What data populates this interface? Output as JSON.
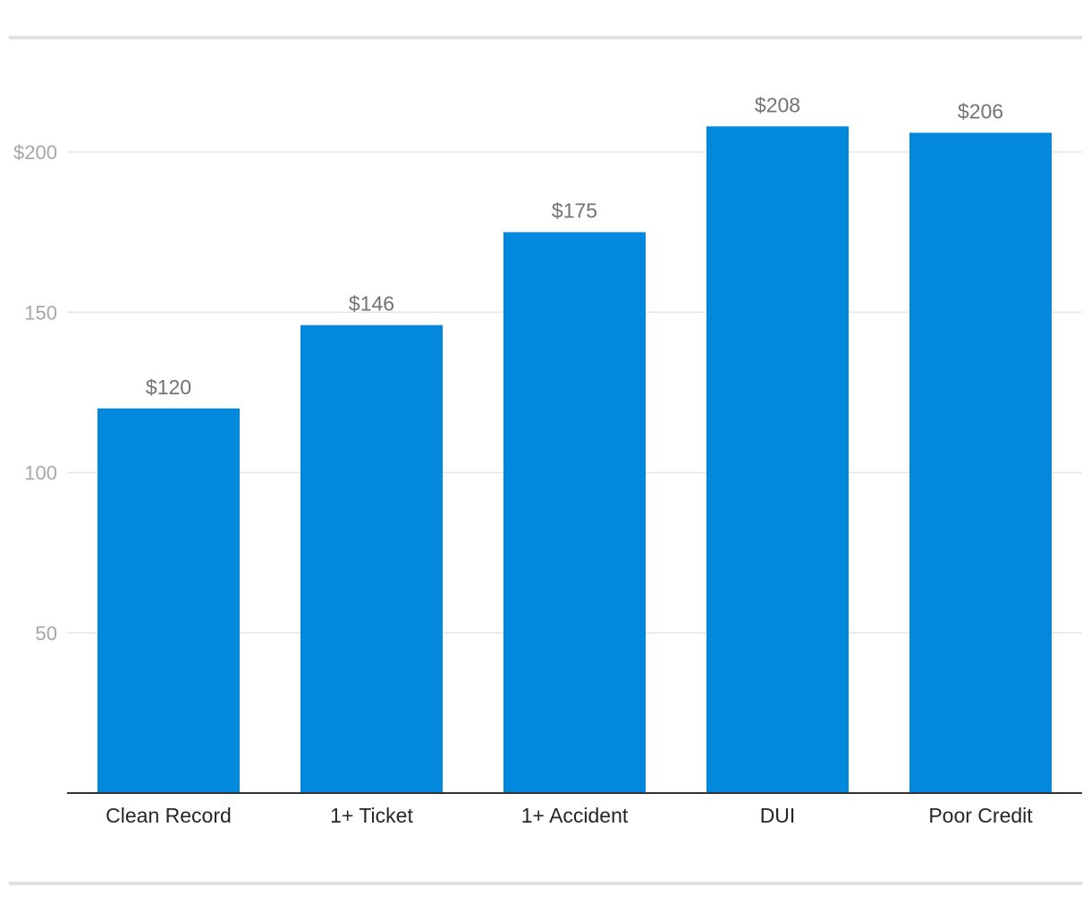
{
  "chart_data": {
    "type": "bar",
    "categories": [
      "Clean Record",
      "1+ Ticket",
      "1+ Accident",
      "DUI",
      "Poor Credit"
    ],
    "values": [
      120,
      146,
      175,
      208,
      206
    ],
    "data_labels": [
      "$120",
      "$146",
      "$175",
      "$208",
      "$206"
    ],
    "y_ticks": [
      {
        "value": 50,
        "label": "50"
      },
      {
        "value": 100,
        "label": "100"
      },
      {
        "value": 150,
        "label": "150"
      },
      {
        "value": 200,
        "label": "$200"
      }
    ],
    "ylim": [
      0,
      230
    ],
    "grid": true,
    "legend": "none",
    "colors": {
      "bar": "#0288dd",
      "gridline": "#e6e6e6",
      "divider": "#e0e0e0",
      "baseline": "#333333"
    }
  }
}
